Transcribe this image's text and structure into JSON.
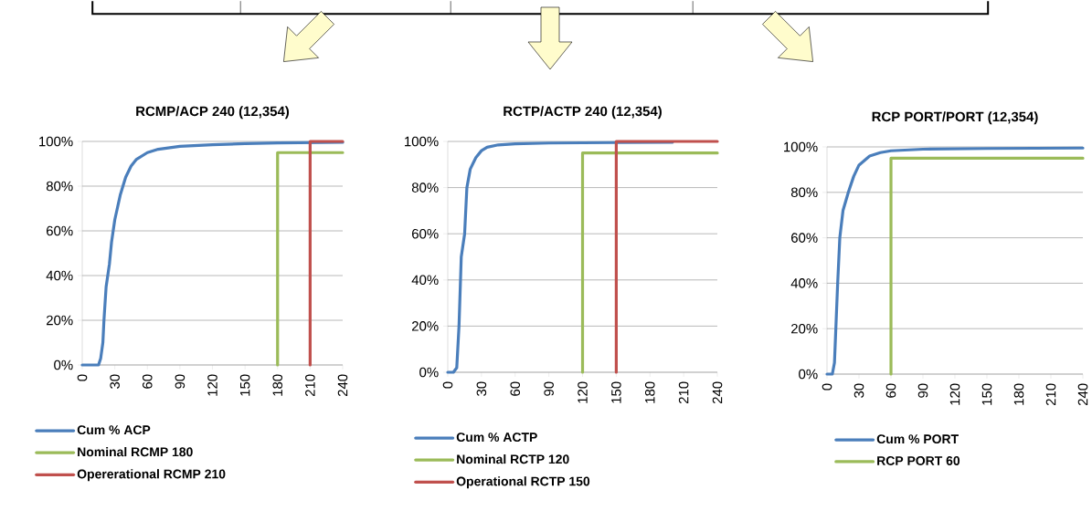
{
  "chart_data": [
    {
      "type": "line",
      "title": "RCMP/ACP 240 (12,354)",
      "xlim": [
        0,
        240
      ],
      "xticks": [
        0,
        30,
        60,
        90,
        120,
        150,
        180,
        210,
        240
      ],
      "ylim": [
        0,
        100
      ],
      "yticks": [
        {
          "value": 0,
          "label": "0%"
        },
        {
          "value": 20,
          "label": "20%"
        },
        {
          "value": 40,
          "label": "40%"
        },
        {
          "value": 60,
          "label": "60%"
        },
        {
          "value": 80,
          "label": "80%"
        },
        {
          "value": 100,
          "label": "100%"
        }
      ],
      "grid": "y",
      "legend": "bottom",
      "series": [
        {
          "name": "Cum % ACP",
          "color": "#4a7ebb",
          "x": [
            0,
            15,
            17,
            19,
            20,
            22,
            25,
            27,
            30,
            35,
            40,
            45,
            50,
            60,
            70,
            90,
            120,
            150,
            180,
            240
          ],
          "values": [
            0,
            0,
            3,
            10,
            20,
            35,
            45,
            55,
            65,
            76,
            84,
            89,
            92,
            95,
            96.5,
            97.8,
            98.5,
            99,
            99.3,
            99.6
          ]
        },
        {
          "name": "Nominal RCMP 180",
          "color": "#9bbb59",
          "x": [
            180,
            180,
            240
          ],
          "values": [
            0,
            95,
            95
          ]
        },
        {
          "name": "Opererational RCMP 210",
          "color": "#c0504d",
          "x": [
            210,
            210,
            240
          ],
          "values": [
            0,
            100,
            100
          ]
        }
      ]
    },
    {
      "type": "line",
      "title": "RCTP/ACTP 240 (12,354)",
      "xlim": [
        0,
        240
      ],
      "xticks": [
        0,
        30,
        60,
        90,
        120,
        150,
        180,
        210,
        240
      ],
      "ylim": [
        0,
        100
      ],
      "yticks": [
        {
          "value": 0,
          "label": "0%"
        },
        {
          "value": 20,
          "label": "20%"
        },
        {
          "value": 40,
          "label": "40%"
        },
        {
          "value": 60,
          "label": "60%"
        },
        {
          "value": 80,
          "label": "80%"
        },
        {
          "value": 100,
          "label": "100%"
        }
      ],
      "grid": "y",
      "legend": "bottom",
      "series": [
        {
          "name": "Cum % ACTP",
          "color": "#4a7ebb",
          "x": [
            0,
            5,
            8,
            10,
            12,
            15,
            17,
            20,
            25,
            30,
            35,
            45,
            60,
            90,
            150,
            200
          ],
          "values": [
            0,
            0,
            2,
            20,
            50,
            60,
            80,
            88,
            93,
            96,
            97.5,
            98.5,
            99,
            99.3,
            99.5,
            99.6
          ]
        },
        {
          "name": "Nominal RCTP 120",
          "color": "#9bbb59",
          "x": [
            120,
            120,
            240
          ],
          "values": [
            0,
            95,
            95
          ]
        },
        {
          "name": "Operational RCTP 150",
          "color": "#c0504d",
          "x": [
            150,
            150,
            240
          ],
          "values": [
            0,
            100,
            100
          ]
        }
      ]
    },
    {
      "type": "line",
      "title": "RCP PORT/PORT (12,354)",
      "xlim": [
        0,
        240
      ],
      "xticks": [
        0,
        30,
        60,
        90,
        120,
        150,
        180,
        210,
        240
      ],
      "ylim": [
        0,
        100
      ],
      "yticks": [
        {
          "value": 0,
          "label": "0%"
        },
        {
          "value": 20,
          "label": "20%"
        },
        {
          "value": 40,
          "label": "40%"
        },
        {
          "value": 60,
          "label": "60%"
        },
        {
          "value": 80,
          "label": "80%"
        },
        {
          "value": 100,
          "label": "100%"
        }
      ],
      "grid": "y",
      "legend": "bottom",
      "series": [
        {
          "name": "Cum % PORT",
          "color": "#4a7ebb",
          "x": [
            0,
            5,
            7,
            10,
            12,
            15,
            20,
            25,
            30,
            40,
            50,
            60,
            90,
            150,
            240
          ],
          "values": [
            0,
            0,
            5,
            40,
            60,
            72,
            80,
            87,
            92,
            96,
            97.5,
            98.3,
            99,
            99.3,
            99.5
          ]
        },
        {
          "name": "RCP PORT 60",
          "color": "#9bbb59",
          "x": [
            60,
            60,
            240
          ],
          "values": [
            0,
            95,
            95
          ]
        }
      ]
    }
  ]
}
